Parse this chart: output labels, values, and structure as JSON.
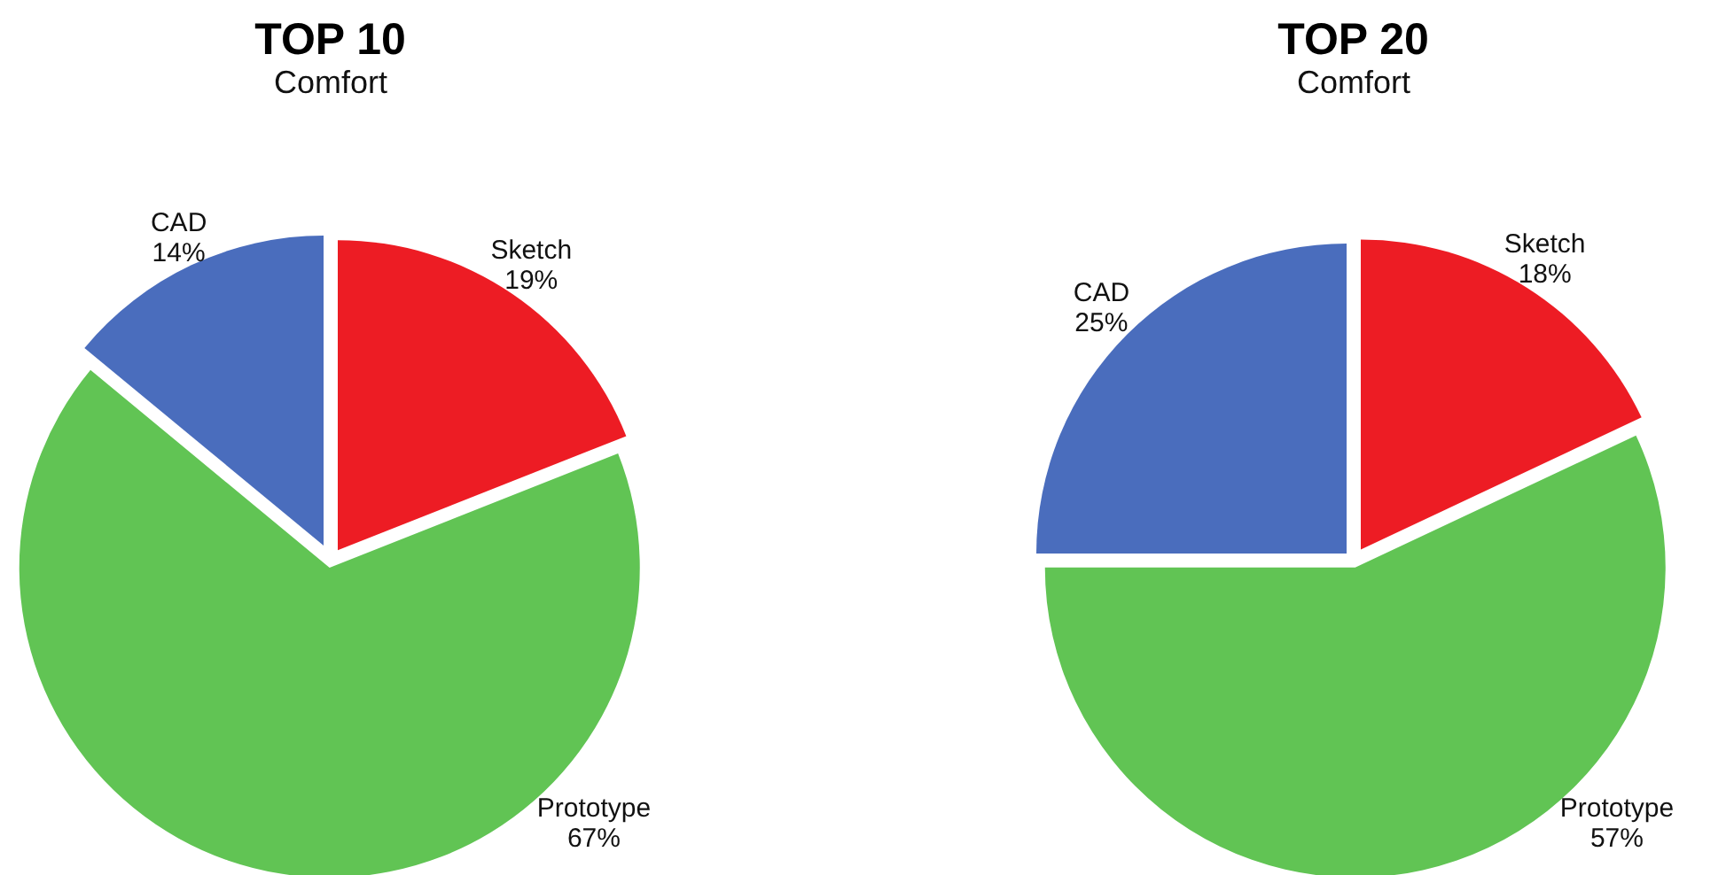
{
  "chart_data": [
    {
      "type": "pie",
      "title": "TOP 10",
      "subtitle": "Comfort",
      "categories": [
        "Sketch",
        "Prototype",
        "CAD"
      ],
      "values": [
        19,
        67,
        14
      ],
      "colors": [
        "#ed1c24",
        "#61c454",
        "#4a6dbd"
      ],
      "value_labels": [
        "19%",
        "67%",
        "14%"
      ]
    },
    {
      "type": "pie",
      "title": "TOP 20",
      "subtitle": "Comfort",
      "categories": [
        "Sketch",
        "Prototype",
        "CAD"
      ],
      "values": [
        18,
        57,
        25
      ],
      "colors": [
        "#ed1c24",
        "#61c454",
        "#4a6dbd"
      ],
      "value_labels": [
        "18%",
        "57%",
        "25%"
      ]
    }
  ]
}
